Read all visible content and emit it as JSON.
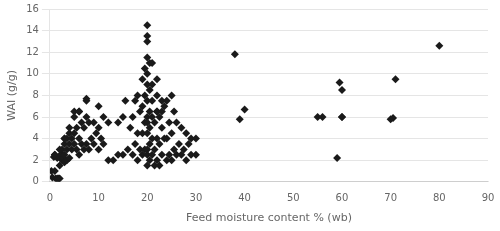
{
  "chart_data": {
    "type": "scatter",
    "xlabel": "Feed moisture content % (wb)",
    "ylabel": "WAI (g/g)",
    "xlim": [
      0,
      90
    ],
    "ylim": [
      0,
      16
    ],
    "xticks": [
      0,
      10,
      20,
      30,
      40,
      50,
      60,
      70,
      80,
      90
    ],
    "yticks": [
      0,
      2,
      4,
      6,
      8,
      10,
      12,
      14,
      16
    ],
    "marker": "diamond",
    "color": "#1a1a1a",
    "grid": "y",
    "x": [
      0.3,
      0.5,
      0.8,
      1.0,
      1.0,
      1.2,
      1.5,
      1.5,
      1.8,
      2.0,
      2.0,
      2.0,
      2.2,
      2.5,
      2.5,
      2.5,
      2.8,
      3.0,
      3.0,
      3.0,
      3.0,
      3.5,
      3.5,
      3.5,
      4.0,
      4.0,
      4.0,
      4.5,
      4.5,
      5.0,
      5.0,
      5.0,
      5.5,
      5.5,
      6.0,
      6.0,
      6.0,
      6.5,
      6.5,
      7.0,
      7.0,
      7.5,
      7.5,
      7.5,
      8.0,
      8.0,
      8.5,
      9.0,
      9.0,
      9.5,
      10.0,
      10.0,
      10.0,
      10.5,
      11.0,
      11.0,
      12.0,
      12.0,
      13.0,
      14.0,
      14.0,
      15.0,
      15.0,
      15.5,
      1.0,
      2.0,
      3.0,
      4.0,
      5.0,
      6.0,
      7.5,
      16.0,
      16.5,
      17.0,
      17.0,
      17.5,
      17.5,
      18.0,
      18.0,
      18.0,
      18.5,
      18.5,
      19.0,
      19.0,
      19.0,
      19.0,
      19.5,
      19.5,
      19.5,
      19.5,
      20.0,
      20.0,
      20.0,
      20.0,
      20.0,
      20.0,
      20.0,
      20.0,
      20.0,
      20.0,
      20.0,
      20.0,
      20.5,
      20.5,
      20.5,
      20.5,
      20.5,
      21.0,
      21.0,
      21.0,
      21.0,
      21.0,
      21.5,
      21.5,
      21.5,
      22.0,
      22.0,
      22.0,
      22.0,
      22.0,
      22.5,
      22.5,
      22.5,
      23.0,
      23.0,
      23.0,
      23.5,
      23.5,
      24.0,
      24.0,
      24.0,
      24.5,
      24.5,
      25.0,
      25.0,
      25.0,
      25.5,
      25.5,
      26.0,
      26.0,
      26.5,
      27.0,
      27.0,
      27.5,
      28.0,
      28.0,
      28.5,
      29.0,
      29.0,
      30.0,
      30.0,
      20.0,
      20.5,
      21.0,
      22.0,
      23.0,
      38.0,
      39.0,
      40.0,
      55.0,
      56.0,
      59.0,
      59.5,
      60.0,
      60.0,
      60.0,
      70.0,
      70.5,
      71.0,
      80.0
    ],
    "values": [
      1.0,
      0.4,
      2.3,
      2.5,
      1.0,
      0.3,
      0.3,
      2.2,
      0.3,
      0.3,
      2.3,
      1.5,
      2.5,
      2.0,
      2.5,
      3.0,
      2.2,
      1.8,
      2.5,
      3.5,
      4.0,
      2.0,
      3.0,
      4.0,
      2.2,
      3.5,
      4.5,
      3.0,
      4.0,
      3.5,
      4.5,
      6.5,
      3.0,
      5.0,
      2.5,
      4.0,
      6.5,
      3.5,
      5.5,
      3.0,
      5.0,
      3.5,
      6.0,
      7.7,
      3.0,
      5.5,
      4.0,
      3.5,
      5.5,
      4.5,
      3.0,
      5.0,
      7.0,
      4.0,
      3.5,
      6.0,
      2.0,
      5.5,
      2.0,
      2.5,
      5.5,
      2.5,
      6.0,
      7.5,
      2.5,
      3.0,
      4.0,
      5.0,
      6.0,
      6.5,
      7.5,
      3.0,
      5.0,
      2.5,
      6.0,
      3.5,
      7.5,
      2.0,
      4.5,
      8.0,
      3.0,
      6.5,
      2.5,
      4.5,
      7.0,
      9.5,
      3.0,
      5.5,
      8.0,
      10.5,
      1.5,
      3.0,
      4.5,
      6.0,
      7.5,
      9.0,
      10.0,
      13.0,
      13.5,
      14.5,
      2.5,
      5.5,
      2.0,
      3.5,
      5.0,
      6.5,
      8.5,
      2.5,
      4.0,
      6.0,
      7.5,
      9.0,
      1.5,
      3.0,
      5.5,
      2.0,
      4.0,
      6.5,
      8.0,
      9.5,
      1.5,
      3.5,
      6.0,
      2.5,
      5.0,
      7.5,
      4.0,
      7.0,
      2.0,
      4.0,
      7.5,
      2.5,
      5.5,
      2.0,
      4.5,
      8.0,
      3.0,
      6.5,
      2.5,
      5.5,
      3.5,
      2.5,
      5.0,
      3.0,
      2.0,
      4.5,
      3.5,
      2.5,
      4.0,
      2.5,
      4.0,
      11.5,
      11.0,
      11.0,
      6.5,
      6.5,
      11.8,
      5.8,
      6.7,
      6.0,
      6.0,
      2.2,
      9.2,
      8.5,
      6.0,
      6.0,
      5.8,
      5.9,
      9.5,
      12.6
    ]
  }
}
